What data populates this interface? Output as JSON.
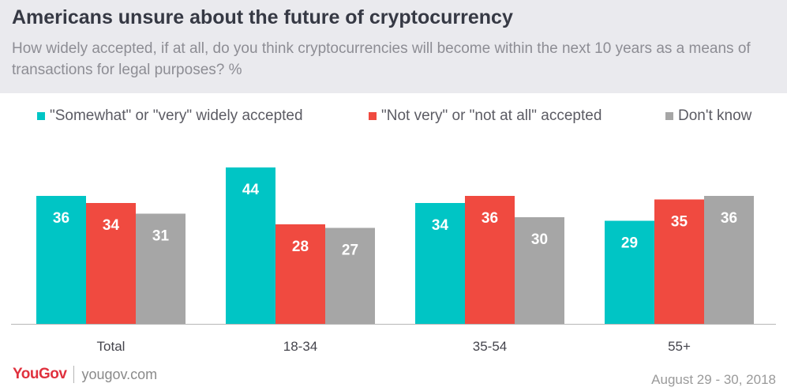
{
  "header": {
    "title": "Americans unsure about the future of cryptocurrency",
    "subtitle": "How widely accepted, if at all, do you think cryptocurrencies will become within the next 10 years as a means of transactions for legal purposes? %"
  },
  "footer": {
    "brand": "YouGov",
    "url": "yougov.com",
    "date": "August 29 - 30, 2018"
  },
  "chart_data": {
    "type": "bar",
    "title": "Americans unsure about the future of cryptocurrency",
    "subtitle": "How widely accepted, if at all, do you think cryptocurrencies will become within the next 10 years as a means of transactions for legal purposes? %",
    "categories": [
      "Total",
      "18-34",
      "35-54",
      "55+"
    ],
    "series": [
      {
        "name": "\"Somewhat\" or \"very\" widely accepted",
        "color": "#00c5c5",
        "values": [
          36,
          44,
          34,
          29
        ]
      },
      {
        "name": "\"Not very\" or \"not at all\" accepted",
        "color": "#f04a40",
        "values": [
          34,
          28,
          36,
          35
        ]
      },
      {
        "name": "Don't know",
        "color": "#a6a6a6",
        "values": [
          31,
          27,
          30,
          36
        ]
      }
    ],
    "xlabel": "",
    "ylabel": "",
    "ylim": [
      0,
      44
    ],
    "grid": false,
    "legend": "top"
  }
}
